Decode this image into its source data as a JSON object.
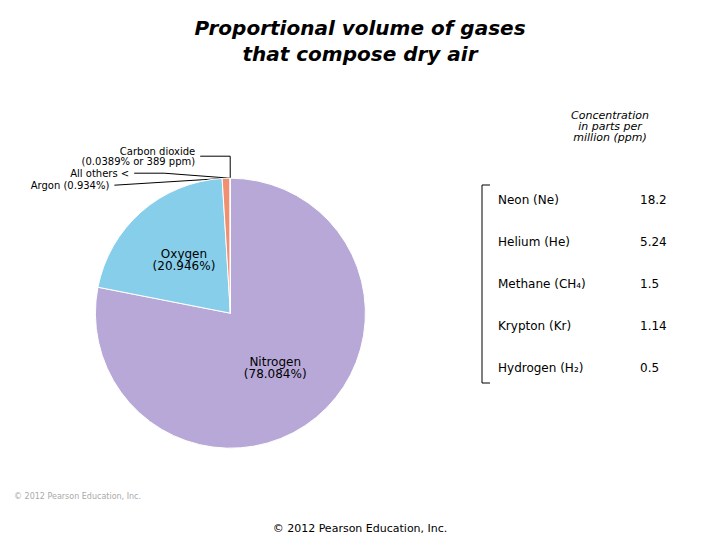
{
  "chart_data": {
    "type": "pie",
    "title": "Proportional volume of gases\nthat compose dry air",
    "categories": [
      "Nitrogen\n(78.084%)",
      "Oxygen\n(20.946%)",
      "Argon (0.934%)",
      "Carbon dioxide\n(0.0389% or 389 ppm)",
      "All others <"
    ],
    "values": [
      78.084,
      20.946,
      0.934,
      0.0389,
      0.0011
    ],
    "colors": [
      "#b8a8d8",
      "#87ceeb",
      "#f09070",
      "#e86050",
      "#f0e060"
    ],
    "annotations": [
      "Concentration\nin parts per\nmillion (ppm)",
      "© 2012 Pearson Education, Inc.",
      "© 2012 Pearson Education, Inc."
    ],
    "concentrations_ppm": {
      "names": [
        "Neon (Ne)",
        "Helium (He)",
        "Methane (CH₄)",
        "Krypton (Kr)",
        "Hydrogen (H₂)"
      ],
      "values": [
        18.2,
        5.24,
        1.5,
        1.14,
        0.5
      ]
    }
  }
}
